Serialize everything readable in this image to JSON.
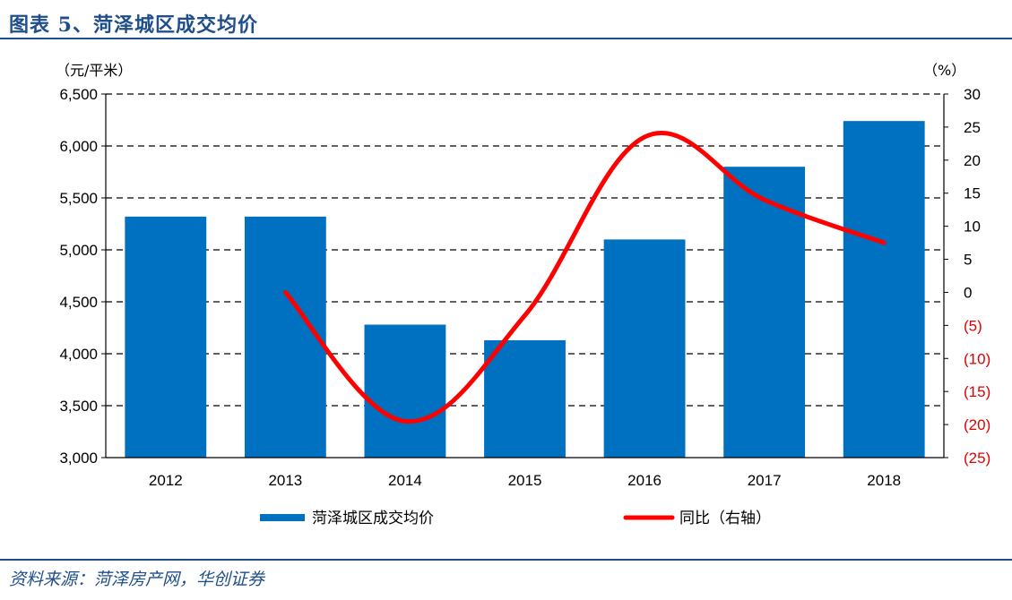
{
  "header": {
    "title": "图表 5、菏泽城区成交均价"
  },
  "footer": {
    "source": "资料来源：菏泽房产网，华创证券"
  },
  "chart_data": {
    "type": "bar",
    "categories": [
      "2012",
      "2013",
      "2014",
      "2015",
      "2016",
      "2017",
      "2018"
    ],
    "series": [
      {
        "name": "菏泽城区成交均价",
        "type": "bar",
        "axis": "left",
        "color": "#0070c0",
        "values": [
          5320,
          5320,
          4280,
          4130,
          5100,
          5800,
          6240
        ]
      },
      {
        "name": "同比（右轴）",
        "type": "line",
        "axis": "right",
        "color": "#ff0000",
        "values": [
          null,
          0,
          -19.5,
          -3.5,
          23.5,
          14,
          7.5
        ]
      }
    ],
    "left_axis": {
      "unit": "（元/平米）",
      "ylim": [
        3000,
        6500
      ],
      "ticks": [
        3000,
        3500,
        4000,
        4500,
        5000,
        5500,
        6000,
        6500
      ],
      "tick_labels": [
        "3,000",
        "3,500",
        "4,000",
        "4,500",
        "5,000",
        "5,500",
        "6,000",
        "6,500"
      ]
    },
    "right_axis": {
      "unit": "（%）",
      "ylim": [
        -25,
        30
      ],
      "ticks": [
        30,
        25,
        20,
        15,
        10,
        5,
        0,
        -5,
        -10,
        -15,
        -20,
        -25
      ],
      "tick_labels": [
        "30",
        "25",
        "20",
        "15",
        "10",
        "5",
        "0",
        "(5)",
        "(10)",
        "(15)",
        "(20)",
        "(25)"
      ]
    },
    "grid": "dashed horizontal",
    "legend_position": "bottom"
  }
}
